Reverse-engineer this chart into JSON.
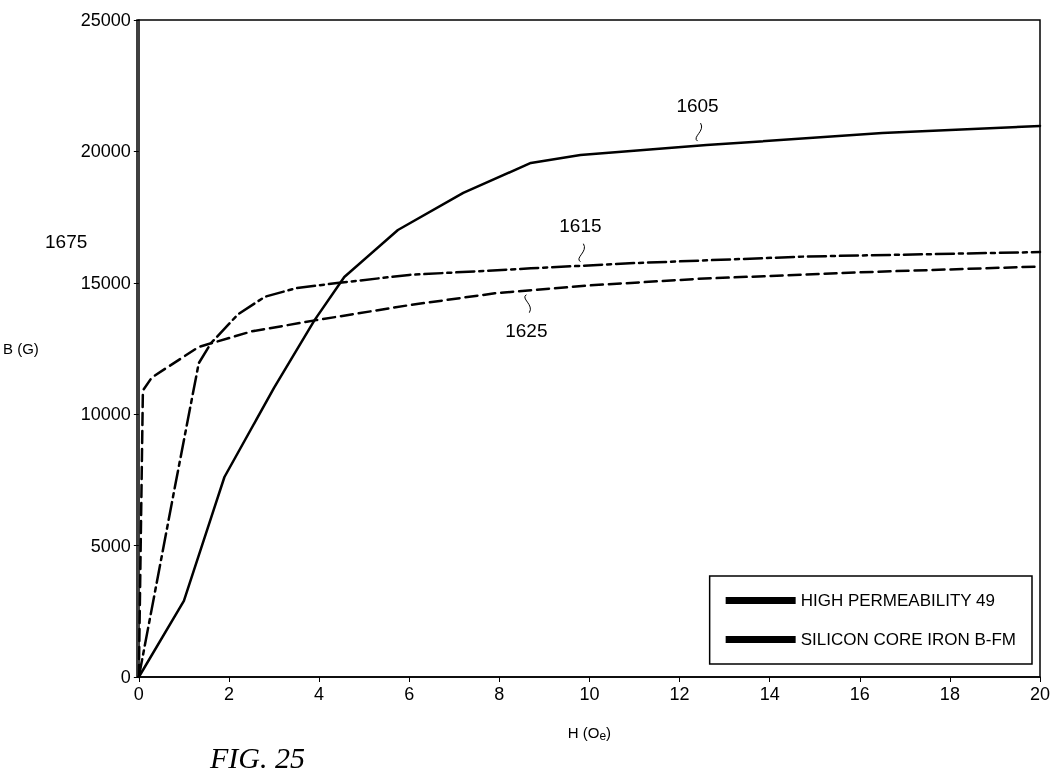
{
  "chart_data": {
    "type": "line",
    "xlabel": "H (O$_{e}$)",
    "ylabel": "B (G)",
    "xlim": [
      0,
      20
    ],
    "xticks": [
      0,
      2,
      4,
      6,
      8,
      10,
      12,
      14,
      16,
      18,
      20
    ],
    "ylim": [
      0,
      25000
    ],
    "yticks": [
      0,
      5000,
      10000,
      15000,
      20000,
      25000
    ],
    "grid": false,
    "legend": "bottom right",
    "marker": "none",
    "series": [
      {
        "name": "HIGH PERMEABILITY 49",
        "color": "#000000",
        "line_style": "dashed",
        "x": [
          0,
          0.09,
          0.29,
          1.33,
          2.5,
          3.94,
          6,
          7.9,
          10,
          12.4,
          16,
          20
        ],
        "values": [
          0,
          10900,
          11400,
          12560,
          13150,
          13580,
          14150,
          14600,
          14900,
          15150,
          15400,
          15620
        ]
      },
      {
        "name": "SILICON CORE IRON B-FM",
        "color": "#000000",
        "line_style": "dashdot",
        "x": [
          0,
          0.8,
          1.33,
          1.6,
          2.2,
          2.8,
          3.5,
          4.4,
          6,
          8.7,
          11,
          14.8,
          20
        ],
        "values": [
          0,
          7230,
          11940,
          12700,
          13800,
          14470,
          14800,
          14990,
          15300,
          15550,
          15750,
          16000,
          16170
        ]
      },
      {
        "color": "#000000",
        "line_style": "solid",
        "x": [
          0,
          1,
          1.9,
          3,
          3.9,
          4.56,
          5.75,
          7.2,
          8.7,
          9.8,
          12.6,
          16.5,
          20
        ],
        "values": [
          0,
          2900,
          7610,
          11000,
          13580,
          15220,
          17010,
          18420,
          19560,
          19860,
          20240,
          20700,
          20970
        ]
      }
    ],
    "annotations": [
      {
        "text": "1605",
        "x": 12.4,
        "y": 20240
      },
      {
        "text": "1615",
        "x": 9.8,
        "y": 15650
      },
      {
        "text": "1625",
        "x": 8.6,
        "y": 14700
      },
      "1675",
      "FIG. 25"
    ]
  }
}
